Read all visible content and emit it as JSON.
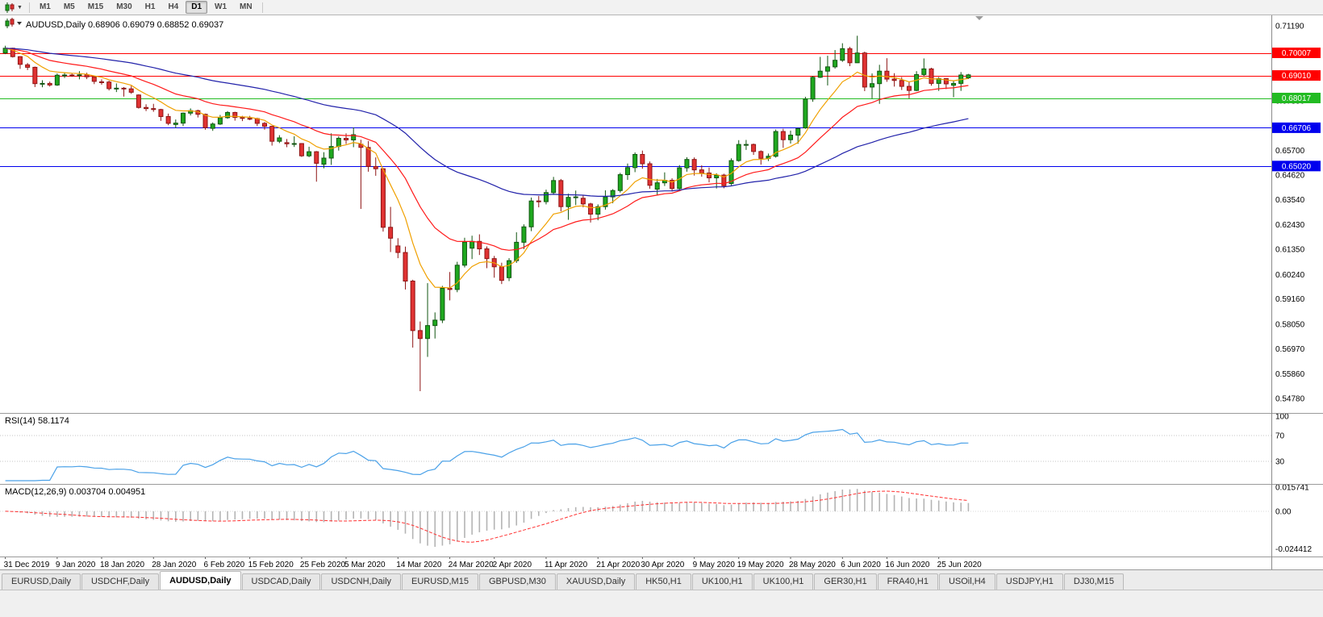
{
  "window": {
    "title": "AUDUSD,Daily"
  },
  "toolbar": {
    "timeframes": [
      "M1",
      "M5",
      "M15",
      "M30",
      "H1",
      "H4",
      "D1",
      "W1",
      "MN"
    ],
    "active_timeframe": "D1"
  },
  "chart": {
    "symbol": "AUDUSD,Daily",
    "open": "0.68906",
    "high": "0.69079",
    "low": "0.68852",
    "close": "0.69037",
    "title_full": "AUDUSD,Daily  0.68906 0.69079 0.68852 0.69037"
  },
  "indicators": {
    "rsi": {
      "label_full": "RSI(14) 58.1174",
      "value": "58.1174"
    },
    "macd": {
      "label_full": "MACD(12,26,9) 0.003704 0.004951",
      "values": "0.003704 0.004951"
    }
  },
  "tabs": {
    "items": [
      "EURUSD,Daily",
      "USDCHF,Daily",
      "AUDUSD,Daily",
      "USDCAD,Daily",
      "USDCNH,Daily",
      "EURUSD,M15",
      "GBPUSD,M30",
      "XAUUSD,Daily",
      "HK50,H1",
      "UK100,H1",
      "UK100,H1",
      "GER30,H1",
      "FRA40,H1",
      "USOil,H4",
      "USDJPY,H1",
      "DJ30,M15"
    ],
    "active_index": 2
  },
  "chart_data": {
    "type": "candlestick",
    "symbol": "AUDUSD",
    "timeframe": "Daily",
    "ylim": [
      0.5414,
      0.7166
    ],
    "price_ticks": [
      0.7119,
      0.7008,
      0.69,
      0.6789,
      0.6681,
      0.657,
      0.6462,
      0.6354,
      0.6243,
      0.6135,
      0.6024,
      0.5916,
      0.5805,
      0.5697,
      0.5586,
      0.5478
    ],
    "x_labels": [
      "31 Dec 2019",
      "9 Jan 2020",
      "18 Jan 2020",
      "28 Jan 2020",
      "6 Feb 2020",
      "15 Feb 2020",
      "25 Feb 2020",
      "5 Mar 2020",
      "14 Mar 2020",
      "24 Mar 2020",
      "2 Apr 2020",
      "11 Apr 2020",
      "21 Apr 2020",
      "30 Apr 2020",
      "9 May 2020",
      "19 May 2020",
      "28 May 2020",
      "6 Jun 2020",
      "16 Jun 2020",
      "25 Jun 2020"
    ],
    "bars_per_label": 6.63,
    "levels": [
      {
        "price": 0.70007,
        "label": "0.70007",
        "color": "#ff0000"
      },
      {
        "price": 0.6901,
        "label": "0.69010",
        "color": "#ff0000"
      },
      {
        "price": 0.68017,
        "label": "0.68017",
        "color": "#22bb22"
      },
      {
        "price": 0.66706,
        "label": "0.66706",
        "color": "#0000ee"
      },
      {
        "price": 0.6502,
        "label": "0.65020",
        "color": "#0000ee"
      }
    ],
    "moving_averages": [
      {
        "name": "fast",
        "period": 8,
        "method": "ema",
        "color": "#f0a000"
      },
      {
        "name": "medium",
        "period": 20,
        "method": "ema",
        "color": "#ff1a1a"
      },
      {
        "name": "slow",
        "period": 55,
        "method": "ema",
        "color": "#2222aa"
      }
    ],
    "colors": {
      "up": "#1fa81f",
      "up_stroke": "#115511",
      "down": "#e03232",
      "down_stroke": "#8e1515"
    },
    "rsi": {
      "period": 14,
      "current": 58.1174,
      "color": "#4aa1e8",
      "ylim": [
        0,
        100
      ],
      "axis": [
        {
          "v": 100,
          "t": "100"
        },
        {
          "v": 70,
          "t": "70"
        },
        {
          "v": 30,
          "t": "30"
        }
      ],
      "level_lines": [
        70,
        30
      ]
    },
    "macd": {
      "fast": 12,
      "slow": 26,
      "signal": 9,
      "current": [
        0.003704,
        0.004951
      ],
      "ylim": [
        -0.0294,
        0.0178
      ],
      "axis": [
        {
          "v": 0.015741,
          "t": "0.015741"
        },
        {
          "v": 0,
          "t": "0.00"
        },
        {
          "v": -0.024412,
          "t": "-0.024412"
        }
      ],
      "bar_color": "#b4b4b4",
      "signal_color": "#ff3030"
    },
    "candles": [
      [
        0.7,
        0.7032,
        0.6995,
        0.7021
      ],
      [
        0.7021,
        0.7023,
        0.698,
        0.6984
      ],
      [
        0.6984,
        0.6986,
        0.693,
        0.695
      ],
      [
        0.6948,
        0.6956,
        0.6925,
        0.6937
      ],
      [
        0.6937,
        0.694,
        0.685,
        0.6865
      ],
      [
        0.6865,
        0.688,
        0.6849,
        0.6866
      ],
      [
        0.6866,
        0.6874,
        0.6852,
        0.6859
      ],
      [
        0.6859,
        0.691,
        0.6855,
        0.6902
      ],
      [
        0.69,
        0.6912,
        0.689,
        0.6903
      ],
      [
        0.6903,
        0.6911,
        0.6895,
        0.6902
      ],
      [
        0.6902,
        0.692,
        0.6884,
        0.6904
      ],
      [
        0.6904,
        0.6913,
        0.6885,
        0.6895
      ],
      [
        0.6895,
        0.69,
        0.6863,
        0.6875
      ],
      [
        0.6873,
        0.6884,
        0.686,
        0.6872
      ],
      [
        0.6872,
        0.6878,
        0.6835,
        0.6843
      ],
      [
        0.6843,
        0.6866,
        0.6828,
        0.6845
      ],
      [
        0.6845,
        0.685,
        0.6808,
        0.6842
      ],
      [
        0.6842,
        0.6855,
        0.682,
        0.6827
      ],
      [
        0.6815,
        0.6818,
        0.6755,
        0.676
      ],
      [
        0.676,
        0.6774,
        0.6744,
        0.6755
      ],
      [
        0.6755,
        0.6776,
        0.6741,
        0.6751
      ],
      [
        0.6751,
        0.6754,
        0.6701,
        0.672
      ],
      [
        0.672,
        0.6733,
        0.6682,
        0.669
      ],
      [
        0.6685,
        0.6707,
        0.667,
        0.6691
      ],
      [
        0.6691,
        0.6738,
        0.6678,
        0.6735
      ],
      [
        0.6735,
        0.6756,
        0.6725,
        0.6746
      ],
      [
        0.6746,
        0.675,
        0.6716,
        0.673
      ],
      [
        0.673,
        0.6733,
        0.6662,
        0.6671
      ],
      [
        0.6668,
        0.6694,
        0.6657,
        0.6687
      ],
      [
        0.6687,
        0.6727,
        0.6683,
        0.6715
      ],
      [
        0.6715,
        0.6744,
        0.671,
        0.6738
      ],
      [
        0.6738,
        0.6741,
        0.6702,
        0.6716
      ],
      [
        0.6716,
        0.6723,
        0.67,
        0.6712
      ],
      [
        0.6712,
        0.6723,
        0.6704,
        0.6711
      ],
      [
        0.6711,
        0.6715,
        0.6678,
        0.669
      ],
      [
        0.669,
        0.6696,
        0.6662,
        0.6677
      ],
      [
        0.6677,
        0.6679,
        0.6592,
        0.6611
      ],
      [
        0.6611,
        0.6638,
        0.6603,
        0.6626
      ],
      [
        0.6605,
        0.6621,
        0.6585,
        0.66
      ],
      [
        0.66,
        0.6633,
        0.6586,
        0.6601
      ],
      [
        0.6601,
        0.6603,
        0.6542,
        0.6547
      ],
      [
        0.6547,
        0.6587,
        0.6541,
        0.6565
      ],
      [
        0.6565,
        0.6568,
        0.6433,
        0.6514
      ],
      [
        0.651,
        0.6563,
        0.6492,
        0.6537
      ],
      [
        0.6537,
        0.6646,
        0.6507,
        0.6588
      ],
      [
        0.6588,
        0.6633,
        0.657,
        0.6624
      ],
      [
        0.6624,
        0.6646,
        0.6599,
        0.6617
      ],
      [
        0.6617,
        0.6672,
        0.6585,
        0.664
      ],
      [
        0.6598,
        0.6618,
        0.6313,
        0.6584
      ],
      [
        0.6584,
        0.6612,
        0.6477,
        0.65
      ],
      [
        0.65,
        0.654,
        0.6459,
        0.649
      ],
      [
        0.649,
        0.6493,
        0.6213,
        0.6232
      ],
      [
        0.6232,
        0.6322,
        0.6123,
        0.6184
      ],
      [
        0.615,
        0.6184,
        0.6096,
        0.6121
      ],
      [
        0.6121,
        0.6147,
        0.5958,
        0.5995
      ],
      [
        0.5995,
        0.6001,
        0.5702,
        0.5777
      ],
      [
        0.5777,
        0.5817,
        0.551,
        0.5742
      ],
      [
        0.5742,
        0.5986,
        0.5661,
        0.5799
      ],
      [
        0.5799,
        0.5857,
        0.5742,
        0.5823
      ],
      [
        0.5823,
        0.5974,
        0.581,
        0.5963
      ],
      [
        0.5963,
        0.6035,
        0.591,
        0.5958
      ],
      [
        0.5958,
        0.608,
        0.5946,
        0.6065
      ],
      [
        0.6065,
        0.6186,
        0.6055,
        0.6167
      ],
      [
        0.614,
        0.6195,
        0.6092,
        0.617
      ],
      [
        0.617,
        0.6201,
        0.611,
        0.6137
      ],
      [
        0.6137,
        0.6148,
        0.6052,
        0.6094
      ],
      [
        0.6094,
        0.6106,
        0.601,
        0.6058
      ],
      [
        0.6058,
        0.6076,
        0.5982,
        0.5998
      ],
      [
        0.601,
        0.6096,
        0.5995,
        0.6085
      ],
      [
        0.6085,
        0.621,
        0.6075,
        0.6166
      ],
      [
        0.6166,
        0.6245,
        0.6136,
        0.6234
      ],
      [
        0.6234,
        0.6363,
        0.6215,
        0.6348
      ],
      [
        0.6348,
        0.637,
        0.632,
        0.6345
      ],
      [
        0.6345,
        0.6398,
        0.6333,
        0.6385
      ],
      [
        0.6385,
        0.6454,
        0.6375,
        0.6438
      ],
      [
        0.6438,
        0.6445,
        0.6302,
        0.6323
      ],
      [
        0.6323,
        0.638,
        0.6265,
        0.6364
      ],
      [
        0.6364,
        0.6394,
        0.633,
        0.6366
      ],
      [
        0.636,
        0.6375,
        0.632,
        0.6335
      ],
      [
        0.6335,
        0.634,
        0.6253,
        0.629
      ],
      [
        0.629,
        0.6333,
        0.6263,
        0.6323
      ],
      [
        0.6323,
        0.6395,
        0.631,
        0.6366
      ],
      [
        0.6366,
        0.64,
        0.6338,
        0.6394
      ],
      [
        0.6394,
        0.6472,
        0.6385,
        0.6464
      ],
      [
        0.6464,
        0.6513,
        0.6441,
        0.6495
      ],
      [
        0.6495,
        0.6562,
        0.6475,
        0.6553
      ],
      [
        0.6553,
        0.657,
        0.649,
        0.6512
      ],
      [
        0.6512,
        0.6522,
        0.6402,
        0.6417
      ],
      [
        0.64,
        0.6445,
        0.6372,
        0.6428
      ],
      [
        0.6428,
        0.6474,
        0.6414,
        0.6439
      ],
      [
        0.6439,
        0.6448,
        0.639,
        0.6403
      ],
      [
        0.6403,
        0.6506,
        0.6391,
        0.6494
      ],
      [
        0.6494,
        0.6541,
        0.6477,
        0.6531
      ],
      [
        0.6531,
        0.654,
        0.646,
        0.6485
      ],
      [
        0.6485,
        0.6505,
        0.6455,
        0.6471
      ],
      [
        0.6471,
        0.6495,
        0.643,
        0.645
      ],
      [
        0.645,
        0.647,
        0.6403,
        0.6462
      ],
      [
        0.6462,
        0.6468,
        0.6404,
        0.6415
      ],
      [
        0.6425,
        0.6536,
        0.6417,
        0.6526
      ],
      [
        0.6526,
        0.6616,
        0.6521,
        0.6597
      ],
      [
        0.6597,
        0.6617,
        0.6573,
        0.6597
      ],
      [
        0.6597,
        0.6601,
        0.6551,
        0.6566
      ],
      [
        0.6566,
        0.6571,
        0.6508,
        0.6536
      ],
      [
        0.6536,
        0.6557,
        0.6524,
        0.6545
      ],
      [
        0.6545,
        0.6663,
        0.6539,
        0.6654
      ],
      [
        0.6654,
        0.6666,
        0.6582,
        0.6618
      ],
      [
        0.6618,
        0.6658,
        0.6601,
        0.6638
      ],
      [
        0.6638,
        0.667,
        0.66,
        0.6667
      ],
      [
        0.667,
        0.6807,
        0.6666,
        0.6797
      ],
      [
        0.6797,
        0.6899,
        0.6785,
        0.6893
      ],
      [
        0.6893,
        0.6983,
        0.689,
        0.692
      ],
      [
        0.692,
        0.6988,
        0.6857,
        0.6939
      ],
      [
        0.6939,
        0.7013,
        0.6931,
        0.6968
      ],
      [
        0.6968,
        0.7043,
        0.6961,
        0.7019
      ],
      [
        0.7019,
        0.7027,
        0.6942,
        0.6957
      ],
      [
        0.6957,
        0.7076,
        0.6956,
        0.7
      ],
      [
        0.7,
        0.7006,
        0.6832,
        0.685
      ],
      [
        0.685,
        0.691,
        0.6799,
        0.6865
      ],
      [
        0.6865,
        0.6948,
        0.6776,
        0.692
      ],
      [
        0.692,
        0.6977,
        0.6873,
        0.6885
      ],
      [
        0.6885,
        0.6911,
        0.6852,
        0.6879
      ],
      [
        0.6879,
        0.6894,
        0.6837,
        0.6853
      ],
      [
        0.6853,
        0.6872,
        0.68,
        0.6835
      ],
      [
        0.6835,
        0.692,
        0.6832,
        0.6905
      ],
      [
        0.6905,
        0.6976,
        0.6897,
        0.693
      ],
      [
        0.693,
        0.6935,
        0.6856,
        0.6866
      ],
      [
        0.6866,
        0.6894,
        0.6833,
        0.6887
      ],
      [
        0.6887,
        0.6889,
        0.6841,
        0.6864
      ],
      [
        0.6858,
        0.6877,
        0.6805,
        0.6866
      ],
      [
        0.6866,
        0.6916,
        0.6833,
        0.6903
      ],
      [
        0.68906,
        0.69079,
        0.68852,
        0.69037
      ]
    ]
  }
}
